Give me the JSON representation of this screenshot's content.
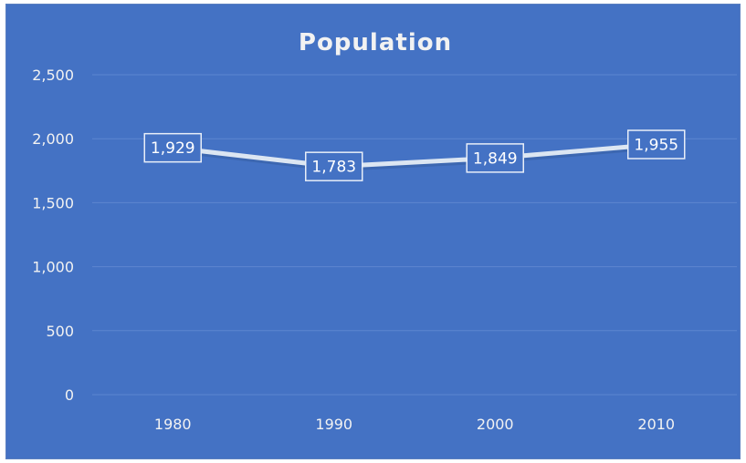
{
  "chart_data": {
    "type": "line",
    "title": "Population",
    "xlabel": "",
    "ylabel": "",
    "categories": [
      "1980",
      "1990",
      "2000",
      "2010"
    ],
    "series": [
      {
        "values": [
          1929,
          1783,
          1849,
          1955
        ]
      }
    ],
    "data_labels": [
      "1,929",
      "1,783",
      "1,849",
      "1,955"
    ],
    "ylim": [
      0,
      2500
    ],
    "y_ticks": [
      0,
      500,
      1000,
      1500,
      2000,
      2500
    ],
    "y_tick_labels": [
      "0",
      "500",
      "1,000",
      "1,500",
      "2,000",
      "2,500"
    ],
    "grid": true,
    "legend": "none",
    "colors": {
      "background": "#4472c4",
      "line": "#dce6f2",
      "gridline": "#5d86d0",
      "text": "#f2f2f2",
      "label_border": "#e8eef8"
    }
  }
}
